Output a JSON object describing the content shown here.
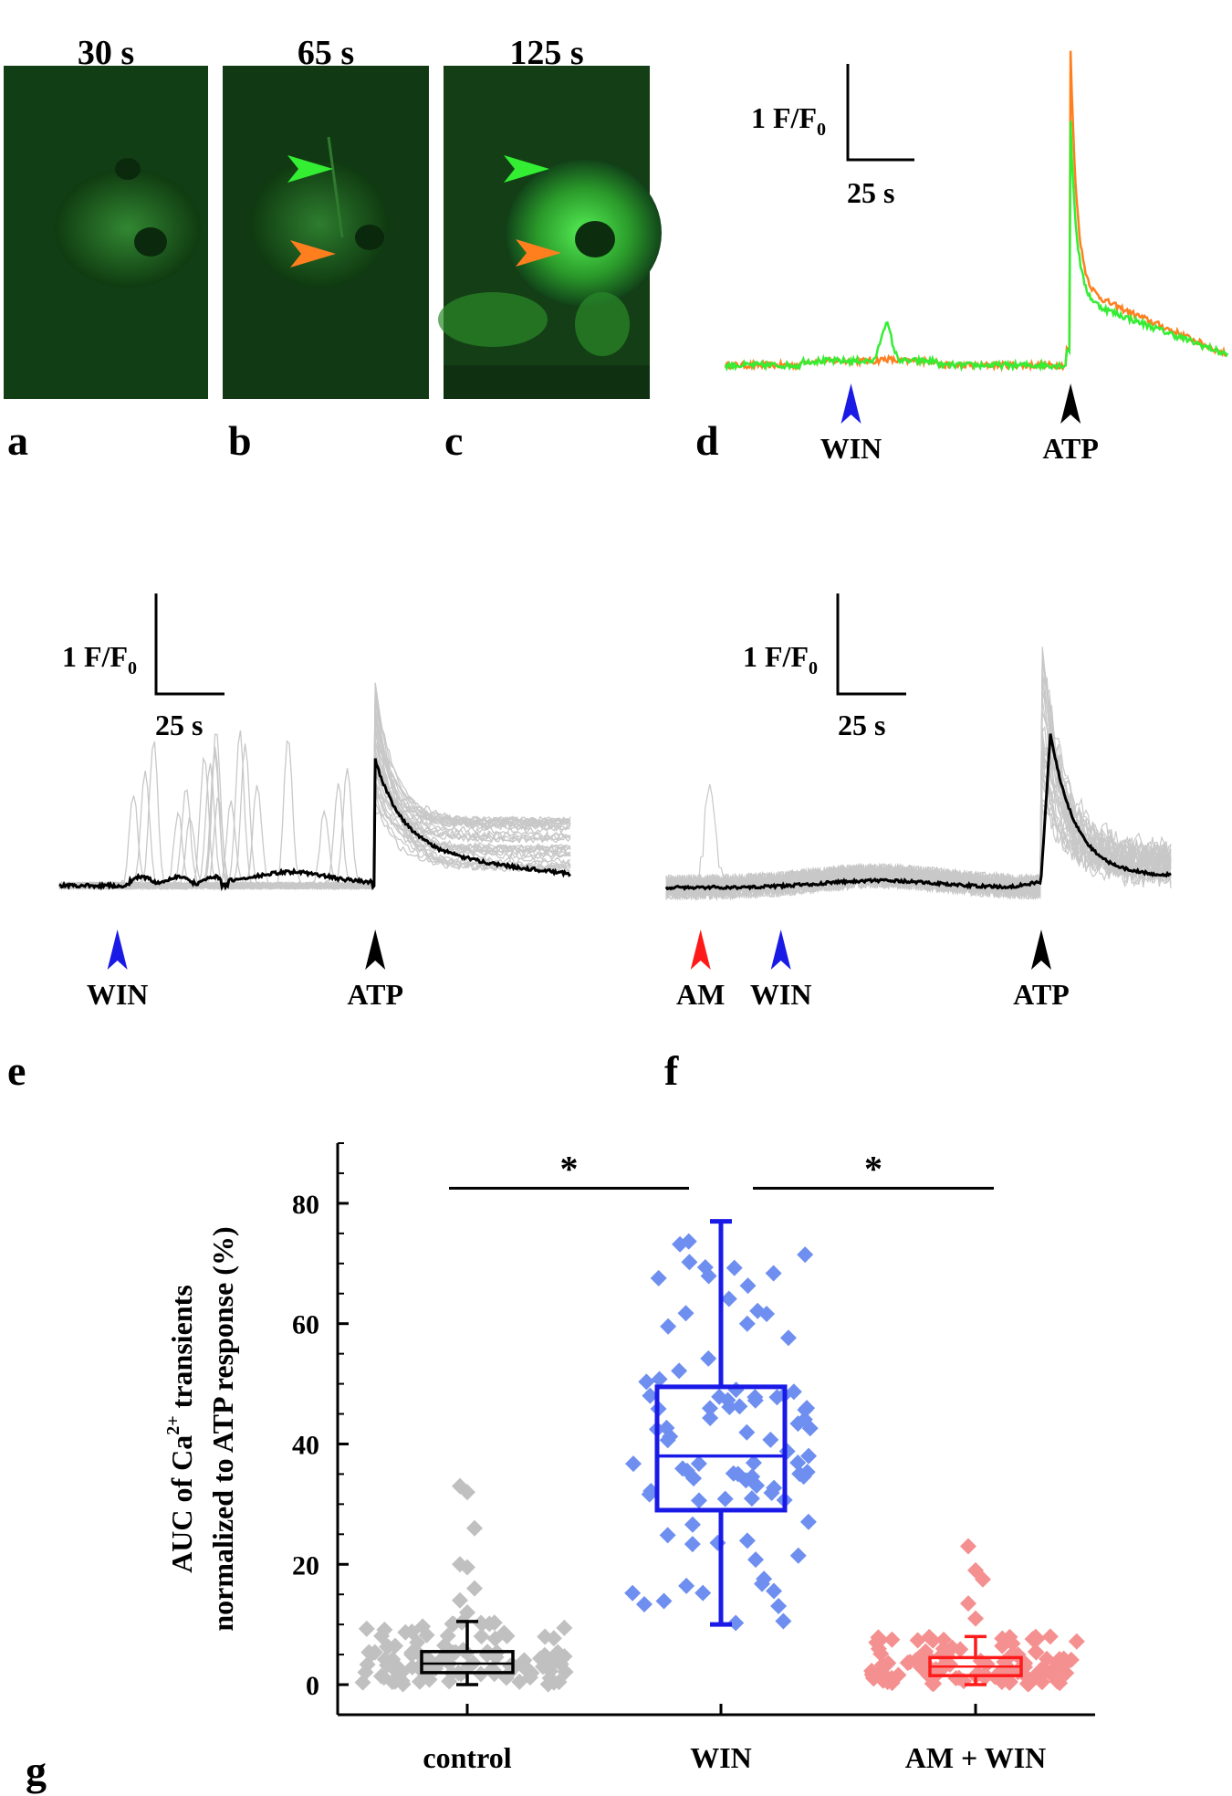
{
  "panel_letters": [
    "a",
    "b",
    "c",
    "d",
    "e",
    "f",
    "g"
  ],
  "micrographs": [
    {
      "time_label": "30 s",
      "arrows": []
    },
    {
      "time_label": "65 s",
      "arrows": [
        "green",
        "orange"
      ]
    },
    {
      "time_label": "125 s",
      "arrows": [
        "green",
        "orange"
      ]
    }
  ],
  "colors": {
    "green": "#33ee33",
    "orange": "#ff7f1f",
    "blue": "#1a1ae6",
    "red": "#ff1a1a",
    "black": "#000000",
    "grey": "#c8c8c8",
    "win_points": "#6e8ff0",
    "am_points": "#f59090",
    "control_points": "#c0c0c0"
  },
  "scale_bar": {
    "y_label_main": "1 F/F",
    "y_label_sub": "0",
    "x_label": "25 s"
  },
  "chart_data": [
    {
      "panel": "d",
      "type": "line",
      "series": [
        {
          "color": "orange",
          "baseline": 0.0,
          "win_bump": 0.02,
          "atp_peak": 3.0,
          "plateau": 0.75
        },
        {
          "color": "green",
          "baseline": 0.0,
          "win_bump": 0.35,
          "atp_peak": 2.3,
          "plateau": 0.65
        }
      ],
      "markers": [
        {
          "label": "WIN",
          "color": "blue",
          "t": 100
        },
        {
          "label": "ATP",
          "color": "black",
          "t": 275
        }
      ]
    },
    {
      "panel": "e",
      "type": "line",
      "series": [
        {
          "name": "",
          "color": "black",
          "atp_peak": 1.1
        }
      ],
      "individual_traces_color": "grey",
      "markers": [
        {
          "label": "WIN",
          "color": "blue",
          "t": 50
        },
        {
          "label": "ATP",
          "color": "black",
          "t": 272
        }
      ]
    },
    {
      "panel": "f",
      "type": "line",
      "series": [
        {
          "name": "",
          "color": "black",
          "atp_peak": 1.35
        }
      ],
      "individual_traces_color": "grey",
      "markers": [
        {
          "label": "AM",
          "color": "red",
          "t": 30
        },
        {
          "label": "WIN",
          "color": "blue",
          "t": 100
        },
        {
          "label": "ATP",
          "color": "black",
          "t": 327
        }
      ]
    },
    {
      "panel": "g",
      "type": "box",
      "ylabel_line1": "AUC of Ca",
      "ylabel_sup": "2+",
      "ylabel_line1_end": " transients",
      "ylabel_line2": "normalized to ATP response (%)",
      "ylim": [
        -5,
        90
      ],
      "yticks": [
        0,
        20,
        40,
        60,
        80
      ],
      "categories": [
        "control",
        "WIN",
        "AM + WIN"
      ],
      "boxes": [
        {
          "name": "control",
          "color": "black",
          "points_color": "control_points",
          "min": 0.0,
          "q1": 2.0,
          "median": 3.5,
          "q3": 5.5,
          "max": 10.5,
          "outliers": [
            33.0,
            32.0,
            26.0,
            20.0,
            19.5,
            16.0,
            14.0,
            12.0
          ]
        },
        {
          "name": "WIN",
          "color": "blue",
          "points_color": "win_points",
          "min": 10.0,
          "q1": 29.0,
          "median": 38.0,
          "q3": 49.5,
          "max": 77.0,
          "outliers": []
        },
        {
          "name": "AM + WIN",
          "color": "red",
          "points_color": "am_points",
          "min": 0.0,
          "q1": 1.5,
          "median": 3.0,
          "q3": 4.5,
          "max": 8.0,
          "outliers": [
            23.0,
            19.0,
            17.5,
            13.5,
            11.0
          ]
        }
      ],
      "significance": [
        {
          "from": "control",
          "to": "WIN",
          "label": "*"
        },
        {
          "from": "WIN",
          "to": "AM + WIN",
          "label": "*"
        }
      ]
    }
  ]
}
